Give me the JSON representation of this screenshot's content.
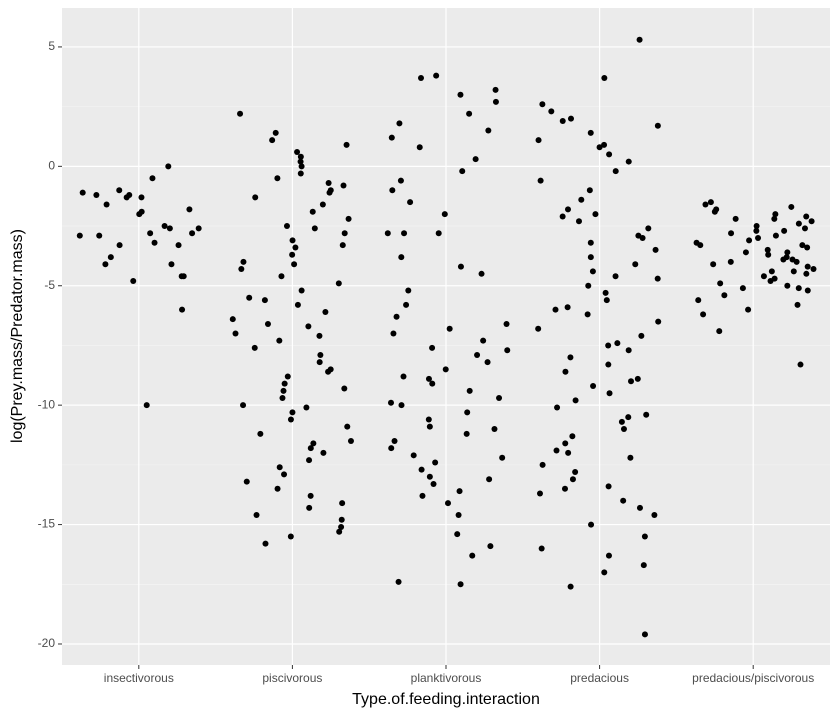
{
  "chart_data": {
    "type": "strip",
    "x_label": "Type.of.feeding.interaction",
    "y_label": "log(Prey.mass/Predator.mass)",
    "categories": [
      "insectivorous",
      "piscivorous",
      "planktivorous",
      "predacious",
      "predacious/piscivorous"
    ],
    "color": "#000000",
    "ylim": [
      -20.88,
      6.63
    ],
    "yticks": [
      5,
      0,
      -5,
      -10,
      -15,
      -20
    ],
    "grid": true,
    "values": [
      [
        0,
        -10,
        -4.8,
        -3.8,
        -3.3,
        -2.6,
        -2,
        -1.9,
        -1.3,
        -2.9,
        -2.8,
        -0.5,
        -1.3,
        -4.6,
        -1,
        -1.2,
        -1.6,
        -2.6,
        -2.5,
        -4.6,
        -6,
        -1.1,
        -3.2,
        -2.8,
        -4.1,
        -4.1,
        -1.2,
        -1.8,
        -2.9,
        -3.3
      ],
      [
        2.2,
        1.4,
        1.1,
        0.9,
        0.6,
        0.4,
        0.2,
        0,
        -0.3,
        -0.5,
        -0.8,
        -1,
        -1.3,
        -1.6,
        -1.9,
        -2.2,
        -2.5,
        -2.8,
        -3.1,
        -3.4,
        -3.7,
        -4,
        -4.3,
        -4.6,
        -4.9,
        -5.2,
        -5.5,
        -5.8,
        -6.1,
        -6.4,
        -6.7,
        -7,
        -7.3,
        -7.6,
        -7.9,
        -8.2,
        -8.5,
        -8.8,
        -9.1,
        -9.4,
        -9.7,
        -10,
        -10.3,
        -10.6,
        -10.9,
        -11.2,
        -11.5,
        -11.8,
        -12,
        -12.3,
        -12.6,
        -12.9,
        -13.2,
        -13.5,
        -13.8,
        -14.1,
        -14.3,
        -14.6,
        -14.8,
        -15.1,
        -15.3,
        -15.5,
        -15.8,
        -1.1,
        -2.6,
        -4.1,
        -5.6,
        -7.1,
        -8.6,
        -10.1,
        -11.6,
        -0.7,
        -3.3,
        -6.6,
        -9.3
      ],
      [
        3.8,
        3.7,
        3.2,
        3,
        2.7,
        2.2,
        1.8,
        1.5,
        1.2,
        0.8,
        0.3,
        -0.2,
        -0.6,
        -1,
        -1.5,
        -2,
        -2.8,
        -2.8,
        -2.8,
        -3.8,
        -4.2,
        -4.5,
        -5.2,
        -5.8,
        -6.3,
        -6.6,
        -7,
        -7.3,
        -7.6,
        -7.9,
        -8.2,
        -8.5,
        -8.8,
        -9.1,
        -9.4,
        -9.7,
        -10,
        -10.3,
        -10.6,
        -10.9,
        -11.2,
        -11.5,
        -11.8,
        -12.1,
        -12.4,
        -12.7,
        -13,
        -13.3,
        -13.6,
        -13.8,
        -14.1,
        -14.6,
        -15.4,
        -15.9,
        -16.3,
        -17.4,
        -17.5,
        -6.8,
        -7.7,
        -8.9,
        -9.9,
        -11,
        -12.2,
        -13.1
      ],
      [
        5.3,
        3.7,
        2.6,
        2.3,
        2,
        1.7,
        1.4,
        1.1,
        0.8,
        0.5,
        0.2,
        -0.2,
        -0.6,
        -1,
        -1.4,
        -1.8,
        -2,
        -2.3,
        -2.6,
        -2.9,
        -3.2,
        -3.5,
        -3.8,
        -4.1,
        -4.4,
        -4.7,
        -5,
        -5.3,
        -5.6,
        -5.9,
        -6.2,
        -6.5,
        -6.8,
        -7.1,
        -7.4,
        -7.7,
        -8,
        -8.3,
        -8.6,
        -8.9,
        -9.2,
        -9.5,
        -9.8,
        -10.1,
        -10.4,
        -10.7,
        -11,
        -11.3,
        -11.6,
        -11.9,
        -12.2,
        -12.5,
        -12.8,
        -13.1,
        -13.4,
        -13.7,
        -14,
        -14.3,
        -14.6,
        -15,
        -15.5,
        -16,
        -16.3,
        -16.7,
        -17,
        -17.6,
        -19.6,
        -2.1,
        -3,
        -4.6,
        -6,
        -7.5,
        -9,
        -10.5,
        -12,
        -13.5,
        1.9,
        0.9
      ],
      [
        -1.5,
        -1.6,
        -1.7,
        -1.8,
        -1.9,
        -2,
        -2.1,
        -2.2,
        -2.3,
        -2.4,
        -2.5,
        -2.6,
        -2.7,
        -2.8,
        -2.9,
        -3,
        -3.1,
        -3.2,
        -3.3,
        -3.4,
        -3.5,
        -3.6,
        -3.7,
        -3.8,
        -3.9,
        -4,
        -4.1,
        -4.2,
        -4.3,
        -4.4,
        -4.5,
        -4.6,
        -4.7,
        -4.8,
        -4.9,
        -5,
        -5.1,
        -5.2,
        -5.4,
        -5.6,
        -5.8,
        -6,
        -6.2,
        -6.9,
        -8.3,
        -2.7,
        -3.3,
        -3.6,
        -4,
        -4.4,
        -2.2,
        -3.9,
        -5.1
      ]
    ]
  }
}
